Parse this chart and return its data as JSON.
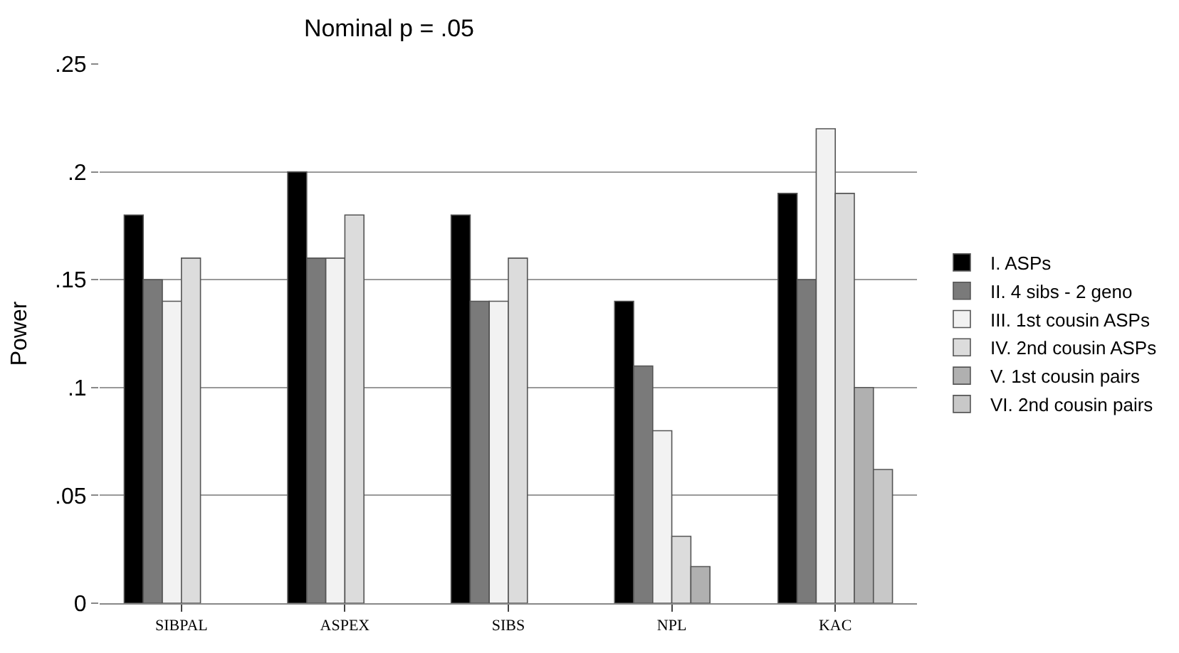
{
  "chart_data": {
    "type": "bar",
    "title": "Nominal p = .05",
    "ylabel": "Power",
    "categories": [
      "SIBPAL",
      "ASPEX",
      "SIBS",
      "NPL",
      "KAC"
    ],
    "series": [
      {
        "name": "I. ASPs",
        "color": "#000000",
        "values": [
          0.18,
          0.2,
          0.18,
          0.14,
          0.19
        ]
      },
      {
        "name": "II. 4 sibs - 2 geno",
        "color": "#7a7a7a",
        "values": [
          0.15,
          0.16,
          0.14,
          0.11,
          0.15
        ]
      },
      {
        "name": "III. 1st cousin ASPs",
        "color": "#f2f2f2",
        "values": [
          0.14,
          0.16,
          0.14,
          0.08,
          0.22
        ]
      },
      {
        "name": "IV. 2nd cousin ASPs",
        "color": "#dcdcdc",
        "values": [
          0.16,
          0.18,
          0.16,
          0.031,
          0.19
        ]
      },
      {
        "name": "V. 1st cousin pairs",
        "color": "#b0b0b0",
        "values": [
          null,
          null,
          null,
          0.017,
          0.1
        ]
      },
      {
        "name": "VI. 2nd cousin pairs",
        "color": "#c8c8c8",
        "values": [
          null,
          null,
          null,
          null,
          0.062
        ]
      }
    ],
    "ylim": [
      0,
      0.25
    ],
    "yticks": [
      {
        "value": 0,
        "label": "0"
      },
      {
        "value": 0.05,
        "label": ".05"
      },
      {
        "value": 0.1,
        "label": ".1"
      },
      {
        "value": 0.15,
        "label": ".15"
      },
      {
        "value": 0.2,
        "label": ".2"
      },
      {
        "value": 0.25,
        "label": ".25"
      }
    ],
    "grid": "y",
    "legend": "right"
  }
}
